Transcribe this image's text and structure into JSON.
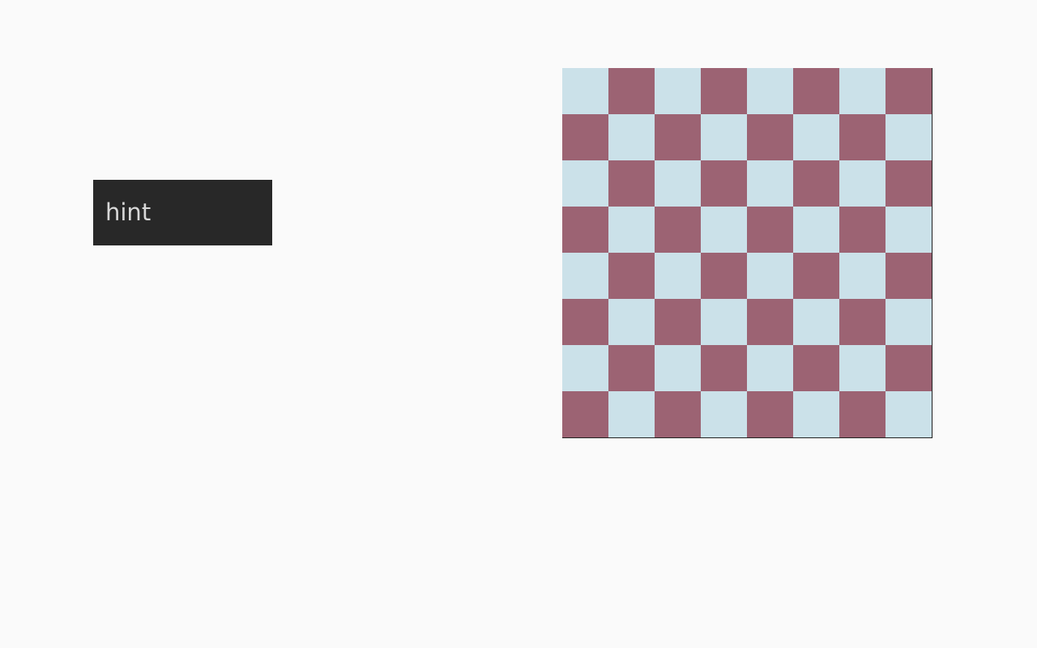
{
  "hint": {
    "label": "hint"
  },
  "board": {
    "rows": 8,
    "columns": 8,
    "light_color": "#cbe1e9",
    "dark_color": "#9c6373",
    "top_left": "light"
  }
}
